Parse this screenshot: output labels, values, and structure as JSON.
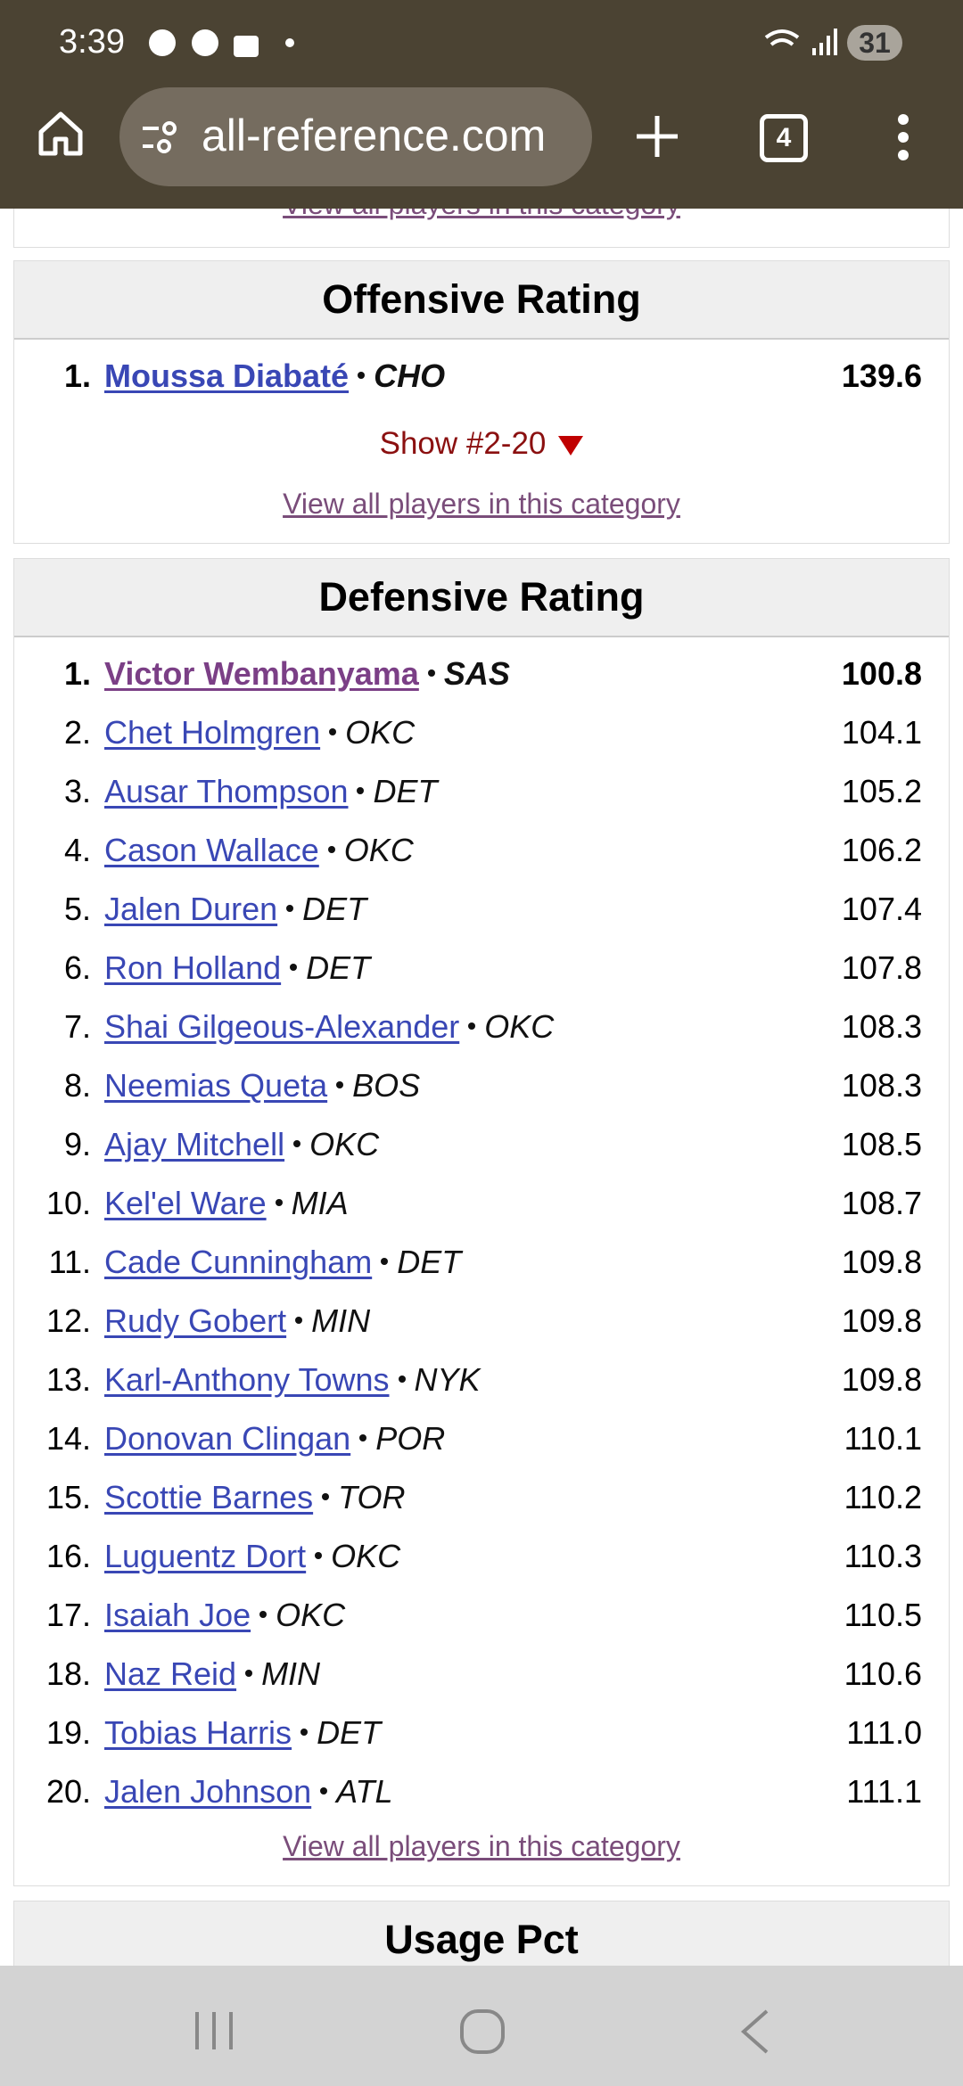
{
  "status_bar": {
    "time": "3:39",
    "battery": "31"
  },
  "browser": {
    "url": "all-reference.com",
    "tab_count": "4"
  },
  "top_link": "View all players in this category",
  "sections": [
    {
      "title": "Offensive Rating",
      "rows": [
        {
          "rank": "1.",
          "name": "Moussa Diabaté",
          "team": "CHO",
          "value": "139.6"
        }
      ],
      "show_more": "Show #2-20",
      "view_all": "View all players in this category"
    },
    {
      "title": "Defensive Rating",
      "rows": [
        {
          "rank": "1.",
          "name": "Victor Wembanyama",
          "team": "SAS",
          "value": "100.8"
        },
        {
          "rank": "2.",
          "name": "Chet Holmgren",
          "team": "OKC",
          "value": "104.1"
        },
        {
          "rank": "3.",
          "name": "Ausar Thompson",
          "team": "DET",
          "value": "105.2"
        },
        {
          "rank": "4.",
          "name": "Cason Wallace",
          "team": "OKC",
          "value": "106.2"
        },
        {
          "rank": "5.",
          "name": "Jalen Duren",
          "team": "DET",
          "value": "107.4"
        },
        {
          "rank": "6.",
          "name": "Ron Holland",
          "team": "DET",
          "value": "107.8"
        },
        {
          "rank": "7.",
          "name": "Shai Gilgeous-Alexander",
          "team": "OKC",
          "value": "108.3"
        },
        {
          "rank": "8.",
          "name": "Neemias Queta",
          "team": "BOS",
          "value": "108.3"
        },
        {
          "rank": "9.",
          "name": "Ajay Mitchell",
          "team": "OKC",
          "value": "108.5"
        },
        {
          "rank": "10.",
          "name": "Kel'el Ware",
          "team": "MIA",
          "value": "108.7"
        },
        {
          "rank": "11.",
          "name": "Cade Cunningham",
          "team": "DET",
          "value": "109.8"
        },
        {
          "rank": "12.",
          "name": "Rudy Gobert",
          "team": "MIN",
          "value": "109.8"
        },
        {
          "rank": "13.",
          "name": "Karl-Anthony Towns",
          "team": "NYK",
          "value": "109.8"
        },
        {
          "rank": "14.",
          "name": "Donovan Clingan",
          "team": "POR",
          "value": "110.1"
        },
        {
          "rank": "15.",
          "name": "Scottie Barnes",
          "team": "TOR",
          "value": "110.2"
        },
        {
          "rank": "16.",
          "name": "Luguentz Dort",
          "team": "OKC",
          "value": "110.3"
        },
        {
          "rank": "17.",
          "name": "Isaiah Joe",
          "team": "OKC",
          "value": "110.5"
        },
        {
          "rank": "18.",
          "name": "Naz Reid",
          "team": "MIN",
          "value": "110.6"
        },
        {
          "rank": "19.",
          "name": "Tobias Harris",
          "team": "DET",
          "value": "111.0"
        },
        {
          "rank": "20.",
          "name": "Jalen Johnson",
          "team": "ATL",
          "value": "111.1"
        }
      ],
      "view_all": "View all players in this category"
    },
    {
      "title": "Usage Pct"
    }
  ]
}
